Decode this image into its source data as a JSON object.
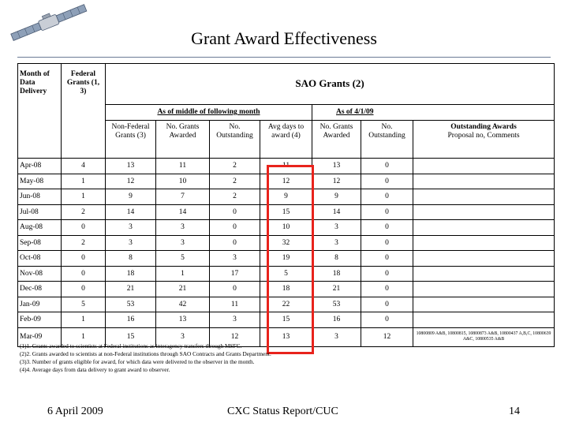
{
  "slide": {
    "title": "Grant Award Effectiveness",
    "footer_date": "6 April 2009",
    "footer_center": "CXC Status Report/CUC",
    "page_number": "14"
  },
  "logo": {
    "icon": "satellite-icon"
  },
  "table": {
    "headers": {
      "month": "Month of Data Delivery",
      "federal": "Federal Grants (1, 3)",
      "sao": "SAO Grants (2)",
      "middle": "As of middle of following month",
      "asof": "As of 4/1/09",
      "nonfed": "Non-Federal Grants (3)",
      "awarded": "No. Grants Awarded",
      "outstanding": "No. Outstanding",
      "avgdays": "Avg days to award (4)",
      "awarded2": "No. Grants Awarded",
      "outstanding2": "No. Outstanding",
      "outst_awards_title": "Outstanding Awards",
      "outst_awards_sub": "Proposal no, Comments"
    },
    "rows": [
      {
        "month": "Apr-08",
        "fed": "4",
        "nonfed": "13",
        "awarded": "11",
        "outst": "2",
        "avg": "11",
        "awarded2": "13",
        "outst2": "0",
        "comment": ""
      },
      {
        "month": "May-08",
        "fed": "1",
        "nonfed": "12",
        "awarded": "10",
        "outst": "2",
        "avg": "12",
        "awarded2": "12",
        "outst2": "0",
        "comment": ""
      },
      {
        "month": "Jun-08",
        "fed": "1",
        "nonfed": "9",
        "awarded": "7",
        "outst": "2",
        "avg": "9",
        "awarded2": "9",
        "outst2": "0",
        "comment": ""
      },
      {
        "month": "Jul-08",
        "fed": "2",
        "nonfed": "14",
        "awarded": "14",
        "outst": "0",
        "avg": "15",
        "awarded2": "14",
        "outst2": "0",
        "comment": ""
      },
      {
        "month": "Aug-08",
        "fed": "0",
        "nonfed": "3",
        "awarded": "3",
        "outst": "0",
        "avg": "10",
        "awarded2": "3",
        "outst2": "0",
        "comment": ""
      },
      {
        "month": "Sep-08",
        "fed": "2",
        "nonfed": "3",
        "awarded": "3",
        "outst": "0",
        "avg": "32",
        "awarded2": "3",
        "outst2": "0",
        "comment": ""
      },
      {
        "month": "Oct-08",
        "fed": "0",
        "nonfed": "8",
        "awarded": "5",
        "outst": "3",
        "avg": "19",
        "awarded2": "8",
        "outst2": "0",
        "comment": ""
      },
      {
        "month": "Nov-08",
        "fed": "0",
        "nonfed": "18",
        "awarded": "1",
        "outst": "17",
        "avg": "5",
        "awarded2": "18",
        "outst2": "0",
        "comment": ""
      },
      {
        "month": "Dec-08",
        "fed": "0",
        "nonfed": "21",
        "awarded": "21",
        "outst": "0",
        "avg": "18",
        "awarded2": "21",
        "outst2": "0",
        "comment": ""
      },
      {
        "month": "Jan-09",
        "fed": "5",
        "nonfed": "53",
        "awarded": "42",
        "outst": "11",
        "avg": "22",
        "awarded2": "53",
        "outst2": "0",
        "comment": ""
      },
      {
        "month": "Feb-09",
        "fed": "1",
        "nonfed": "16",
        "awarded": "13",
        "outst": "3",
        "avg": "15",
        "awarded2": "16",
        "outst2": "0",
        "comment": ""
      },
      {
        "month": "Mar-09",
        "fed": "1",
        "nonfed": "15",
        "awarded": "3",
        "outst": "12",
        "avg": "13",
        "awarded2": "3",
        "outst2": "12",
        "comment": "10800809 A&B, 10800815, 10800873 A&B, 10800437 A,B,C, 10800639 A&C, 10800535 A&B"
      }
    ]
  },
  "notes": [
    "(1)1. Grants awarded to scientists at Federal institutions as interagency transfers through MSFC.",
    "(2)2. Grants awarded to scientists at non-Federal institutions through SAO Contracts and Grants Department.",
    "(3)3. Number of grants eligible for award, for which data were delivered to the observer in the month.",
    "(4)4. Average days from data delivery to grant award to observer."
  ],
  "colors": {
    "highlight": "#e8231c",
    "rule": "#6b7a96"
  }
}
